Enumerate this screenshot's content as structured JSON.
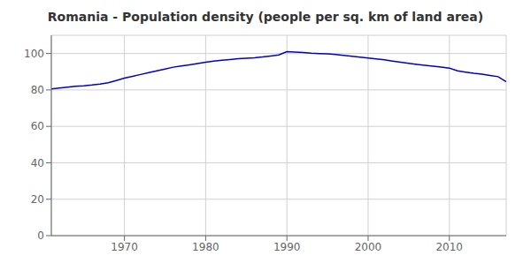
{
  "chart_data": {
    "type": "line",
    "title": "Romania - Population density (people per sq. km of land area)",
    "x": [
      1961,
      1962,
      1963,
      1964,
      1965,
      1966,
      1967,
      1968,
      1969,
      1970,
      1971,
      1972,
      1973,
      1974,
      1975,
      1976,
      1977,
      1978,
      1979,
      1980,
      1981,
      1982,
      1983,
      1984,
      1985,
      1986,
      1987,
      1988,
      1989,
      1990,
      1991,
      1992,
      1993,
      1994,
      1995,
      1996,
      1997,
      1998,
      1999,
      2000,
      2001,
      2002,
      2003,
      2004,
      2005,
      2006,
      2007,
      2008,
      2009,
      2010,
      2011,
      2012,
      2013,
      2014,
      2015,
      2016,
      2017
    ],
    "values": [
      80.5,
      81.0,
      81.5,
      82.0,
      82.3,
      82.7,
      83.2,
      84.0,
      85.2,
      86.5,
      87.5,
      88.5,
      89.5,
      90.5,
      91.5,
      92.5,
      93.2,
      93.8,
      94.5,
      95.2,
      95.8,
      96.3,
      96.7,
      97.1,
      97.4,
      97.7,
      98.1,
      98.6,
      99.2,
      101.0,
      100.8,
      100.5,
      100.2,
      100.0,
      99.8,
      99.5,
      99.0,
      98.5,
      98.0,
      97.5,
      97.0,
      96.5,
      95.8,
      95.2,
      94.6,
      94.0,
      93.5,
      93.0,
      92.5,
      92.0,
      90.5,
      89.8,
      89.2,
      88.7,
      88.0,
      87.3,
      84.5
    ],
    "color": "#0000cc",
    "xlim": [
      1961,
      2017
    ],
    "ylim": [
      0,
      110
    ],
    "xticks": [
      1970,
      1980,
      1990,
      2000,
      2010
    ],
    "yticks": [
      0,
      20,
      40,
      60,
      80,
      100
    ],
    "grid": true
  }
}
